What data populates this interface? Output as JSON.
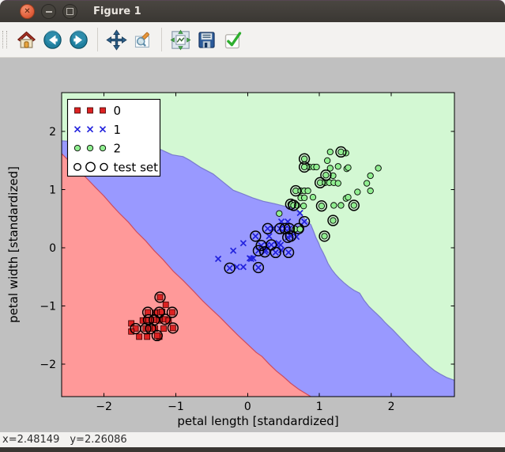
{
  "window": {
    "title": "Figure 1",
    "controls": [
      {
        "name": "close",
        "glyph": "✕"
      },
      {
        "name": "minimize",
        "glyph": "−"
      },
      {
        "name": "maximize",
        "glyph": "▢"
      }
    ]
  },
  "toolbar": {
    "buttons": [
      "home",
      "back",
      "forward",
      "pan",
      "zoom-to-rect",
      "configure-subplots",
      "save",
      "confirm"
    ]
  },
  "statusbar": {
    "x_text": "x=2.48149",
    "y_text": "y=2.26086"
  },
  "chart_data": {
    "type": "scatter",
    "title": "",
    "xlabel": "petal length [standardized]",
    "ylabel": "petal width [standardized]",
    "xlim": [
      -2.59,
      2.88
    ],
    "ylim": [
      -2.56,
      2.67
    ],
    "xticks": [
      -2,
      -1,
      0,
      1,
      2
    ],
    "yticks": [
      -2,
      -1,
      0,
      1,
      2
    ],
    "xtick_labels": [
      "−2",
      "−1",
      "0",
      "1",
      "2"
    ],
    "ytick_labels": [
      "−2",
      "−1",
      "0",
      "1",
      "2"
    ],
    "grid": false,
    "legend": {
      "position": "upper left",
      "entries": [
        "0",
        "1",
        "2",
        "test set"
      ]
    },
    "regions": {
      "colors": {
        "class0": "#ff9999",
        "class1": "#9999ff",
        "class2": "#d3f8d3"
      },
      "red_blue_boundary": [
        [
          -2.59,
          1.62
        ],
        [
          -2.45,
          1.45
        ],
        [
          -2.33,
          1.3
        ],
        [
          -2.26,
          1.22
        ],
        [
          -2.12,
          1.04
        ],
        [
          -2.0,
          0.89
        ],
        [
          -1.88,
          0.72
        ],
        [
          -1.79,
          0.6
        ],
        [
          -1.66,
          0.44
        ],
        [
          -1.55,
          0.28
        ],
        [
          -1.42,
          0.12
        ],
        [
          -1.3,
          -0.05
        ],
        [
          -1.18,
          -0.2
        ],
        [
          -1.03,
          -0.41
        ],
        [
          -0.9,
          -0.56
        ],
        [
          -0.75,
          -0.75
        ],
        [
          -0.62,
          -0.92
        ],
        [
          -0.5,
          -1.06
        ],
        [
          -0.38,
          -1.2
        ],
        [
          -0.26,
          -1.35
        ],
        [
          -0.13,
          -1.51
        ],
        [
          0.0,
          -1.66
        ],
        [
          0.12,
          -1.8
        ],
        [
          0.2,
          -1.87
        ],
        [
          0.3,
          -2.0
        ],
        [
          0.4,
          -2.12
        ],
        [
          0.5,
          -2.22
        ],
        [
          0.6,
          -2.33
        ],
        [
          0.72,
          -2.44
        ],
        [
          0.88,
          -2.56
        ]
      ],
      "green_blue_boundary": [
        [
          -2.59,
          1.84
        ],
        [
          -2.35,
          1.82
        ],
        [
          -2.1,
          1.79
        ],
        [
          -1.85,
          1.77
        ],
        [
          -1.6,
          1.73
        ],
        [
          -1.35,
          1.71
        ],
        [
          -1.21,
          1.69
        ],
        [
          -1.05,
          1.6
        ],
        [
          -0.9,
          1.57
        ],
        [
          -0.81,
          1.51
        ],
        [
          -0.65,
          1.38
        ],
        [
          -0.48,
          1.27
        ],
        [
          -0.35,
          1.14
        ],
        [
          -0.2,
          0.99
        ],
        [
          -0.05,
          0.92
        ],
        [
          0.07,
          0.86
        ],
        [
          0.22,
          0.8
        ],
        [
          0.37,
          0.76
        ],
        [
          0.5,
          0.72
        ],
        [
          0.62,
          0.69
        ],
        [
          0.68,
          0.64
        ],
        [
          0.72,
          0.6
        ],
        [
          0.76,
          0.55
        ],
        [
          0.8,
          0.49
        ],
        [
          0.83,
          0.45
        ],
        [
          0.88,
          0.4
        ],
        [
          0.92,
          0.28
        ],
        [
          0.95,
          0.18
        ],
        [
          0.99,
          0.08
        ],
        [
          1.01,
          0.01
        ],
        [
          1.05,
          -0.08
        ],
        [
          1.08,
          -0.16
        ],
        [
          1.12,
          -0.27
        ],
        [
          1.17,
          -0.37
        ],
        [
          1.22,
          -0.45
        ],
        [
          1.28,
          -0.53
        ],
        [
          1.34,
          -0.6
        ],
        [
          1.41,
          -0.67
        ],
        [
          1.48,
          -0.73
        ],
        [
          1.56,
          -0.78
        ],
        [
          1.62,
          -0.9
        ],
        [
          1.69,
          -1.01
        ],
        [
          1.74,
          -1.07
        ],
        [
          1.8,
          -1.14
        ],
        [
          1.86,
          -1.21
        ],
        [
          1.91,
          -1.28
        ],
        [
          1.96,
          -1.34
        ],
        [
          2.02,
          -1.41
        ],
        [
          2.09,
          -1.5
        ],
        [
          2.16,
          -1.59
        ],
        [
          2.23,
          -1.68
        ],
        [
          2.3,
          -1.77
        ],
        [
          2.38,
          -1.86
        ],
        [
          2.46,
          -1.96
        ],
        [
          2.53,
          -2.04
        ],
        [
          2.6,
          -2.11
        ],
        [
          2.68,
          -2.17
        ],
        [
          2.77,
          -2.23
        ],
        [
          2.88,
          -2.28
        ]
      ]
    },
    "series": [
      {
        "name": "0",
        "marker": "square",
        "color": "#dd2222",
        "edge": "#3a0000",
        "points": [
          [
            -1.22,
            -0.85
          ],
          [
            -1.14,
            -0.98
          ],
          [
            -1.39,
            -1.11
          ],
          [
            -1.23,
            -1.11
          ],
          [
            -1.05,
            -1.11
          ],
          [
            -1.29,
            -1.12
          ],
          [
            -1.19,
            -1.1
          ],
          [
            -1.38,
            -1.24
          ],
          [
            -1.3,
            -1.24
          ],
          [
            -1.15,
            -1.23
          ],
          [
            -1.46,
            -1.25
          ],
          [
            -1.23,
            -1.25
          ],
          [
            -1.1,
            -1.25
          ],
          [
            -1.62,
            -1.3
          ],
          [
            -1.56,
            -1.39
          ],
          [
            -1.42,
            -1.39
          ],
          [
            -1.35,
            -1.39
          ],
          [
            -1.29,
            -1.39
          ],
          [
            -1.17,
            -1.39
          ],
          [
            -1.04,
            -1.38
          ],
          [
            -1.62,
            -1.44
          ],
          [
            -1.51,
            -1.53
          ],
          [
            -1.4,
            -1.53
          ],
          [
            -1.23,
            -1.53
          ],
          [
            -1.26,
            -1.51
          ]
        ]
      },
      {
        "name": "1",
        "marker": "x",
        "color": "#2222dd",
        "edge": "#2222dd",
        "points": [
          [
            0.47,
            0.45
          ],
          [
            0.56,
            0.45
          ],
          [
            0.73,
            0.6
          ],
          [
            0.79,
            0.45
          ],
          [
            0.28,
            0.33
          ],
          [
            0.35,
            0.33
          ],
          [
            0.45,
            0.33
          ],
          [
            0.52,
            0.33
          ],
          [
            0.58,
            0.33
          ],
          [
            0.71,
            0.33
          ],
          [
            0.11,
            0.2
          ],
          [
            0.3,
            0.2
          ],
          [
            0.6,
            0.2
          ],
          [
            0.68,
            0.19
          ],
          [
            0.56,
            0.18
          ],
          [
            -0.06,
            0.08
          ],
          [
            0.43,
            0.08
          ],
          [
            0.19,
            0.04
          ],
          [
            0.27,
            0.05
          ],
          [
            0.33,
            0.05
          ],
          [
            0.41,
            0.05
          ],
          [
            0.46,
            0.05
          ],
          [
            0.15,
            -0.05
          ],
          [
            -0.2,
            -0.05
          ],
          [
            0.24,
            -0.07
          ],
          [
            0.39,
            -0.08
          ],
          [
            0.57,
            -0.08
          ],
          [
            0.25,
            -0.04
          ],
          [
            0.47,
            -0.04
          ],
          [
            -0.41,
            -0.19
          ],
          [
            0.03,
            -0.18
          ],
          [
            0.08,
            -0.18
          ],
          [
            0.05,
            -0.19
          ],
          [
            -0.25,
            -0.35
          ],
          [
            -0.15,
            -0.33
          ],
          [
            -0.06,
            -0.33
          ],
          [
            0.15,
            -0.34
          ]
        ]
      },
      {
        "name": "2",
        "marker": "circle",
        "color": "#90ee90",
        "edge": "#000000",
        "points": [
          [
            1.15,
            1.65
          ],
          [
            1.3,
            1.65
          ],
          [
            1.37,
            1.63
          ],
          [
            1.11,
            1.5
          ],
          [
            0.79,
            1.53
          ],
          [
            0.86,
            1.39
          ],
          [
            0.92,
            1.39
          ],
          [
            0.96,
            1.39
          ],
          [
            0.79,
            1.39
          ],
          [
            1.15,
            1.37
          ],
          [
            1.26,
            1.4
          ],
          [
            1.38,
            1.36
          ],
          [
            1.4,
            1.38
          ],
          [
            1.82,
            1.37
          ],
          [
            1.09,
            1.25
          ],
          [
            1.19,
            1.24
          ],
          [
            1.71,
            1.24
          ],
          [
            1.01,
            1.12
          ],
          [
            1.08,
            1.12
          ],
          [
            1.14,
            1.12
          ],
          [
            1.2,
            1.12
          ],
          [
            1.26,
            1.11
          ],
          [
            1.66,
            1.11
          ],
          [
            0.67,
            0.98
          ],
          [
            0.74,
            0.98
          ],
          [
            0.79,
            0.98
          ],
          [
            0.84,
            0.98
          ],
          [
            1.53,
            0.96
          ],
          [
            1.71,
            0.98
          ],
          [
            0.74,
            0.86
          ],
          [
            0.79,
            0.86
          ],
          [
            0.91,
            0.87
          ],
          [
            1.37,
            0.85
          ],
          [
            1.4,
            0.87
          ],
          [
            0.6,
            0.75
          ],
          [
            0.64,
            0.73
          ],
          [
            0.69,
            0.73
          ],
          [
            0.78,
            0.72
          ],
          [
            1.03,
            0.72
          ],
          [
            1.2,
            0.73
          ],
          [
            1.3,
            0.73
          ],
          [
            1.48,
            0.73
          ],
          [
            0.44,
            0.59
          ],
          [
            0.66,
            0.32
          ],
          [
            0.73,
            0.32
          ],
          [
            1.19,
            0.47
          ],
          [
            1.07,
            0.2
          ]
        ]
      },
      {
        "name": "test set",
        "marker": "open-circle",
        "color": "#000000",
        "edge": "#000000",
        "points": [
          [
            -1.22,
            -0.85
          ],
          [
            -1.39,
            -1.11
          ],
          [
            -1.23,
            -1.11
          ],
          [
            -1.05,
            -1.11
          ],
          [
            -1.38,
            -1.24
          ],
          [
            -1.3,
            -1.24
          ],
          [
            -1.15,
            -1.23
          ],
          [
            -1.56,
            -1.39
          ],
          [
            -1.42,
            -1.39
          ],
          [
            -1.35,
            -1.39
          ],
          [
            -1.04,
            -1.38
          ],
          [
            -1.26,
            -1.51
          ],
          [
            0.79,
            0.45
          ],
          [
            0.28,
            0.33
          ],
          [
            0.45,
            0.33
          ],
          [
            0.52,
            0.33
          ],
          [
            0.58,
            0.33
          ],
          [
            0.71,
            0.33
          ],
          [
            0.11,
            0.2
          ],
          [
            0.6,
            0.2
          ],
          [
            0.56,
            0.18
          ],
          [
            0.19,
            0.04
          ],
          [
            0.33,
            0.05
          ],
          [
            0.15,
            -0.05
          ],
          [
            0.24,
            -0.07
          ],
          [
            0.39,
            -0.08
          ],
          [
            0.57,
            -0.08
          ],
          [
            -0.25,
            -0.35
          ],
          [
            0.15,
            -0.34
          ],
          [
            1.3,
            1.65
          ],
          [
            0.79,
            1.53
          ],
          [
            0.79,
            1.39
          ],
          [
            1.09,
            1.25
          ],
          [
            1.01,
            1.12
          ],
          [
            0.67,
            0.98
          ],
          [
            0.6,
            0.75
          ],
          [
            0.64,
            0.73
          ],
          [
            1.03,
            0.72
          ],
          [
            1.48,
            0.73
          ],
          [
            1.19,
            0.47
          ],
          [
            1.07,
            0.2
          ]
        ]
      }
    ]
  }
}
